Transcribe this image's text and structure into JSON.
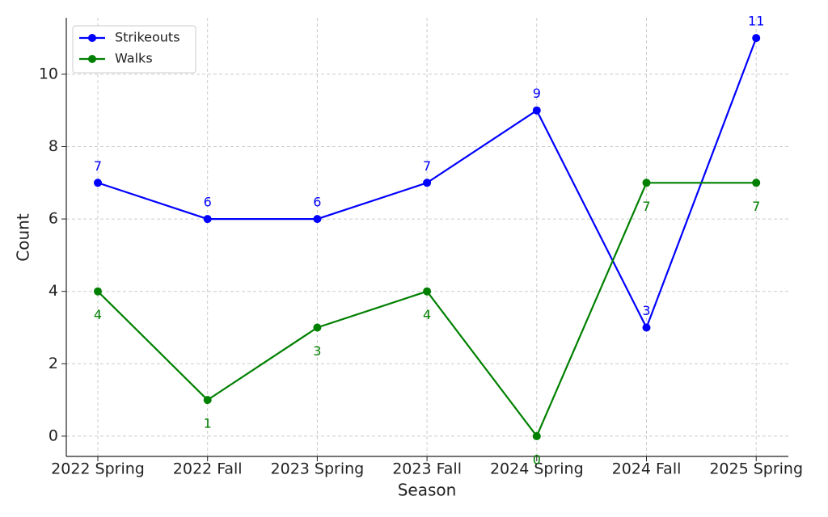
{
  "chart_data": {
    "type": "line",
    "x_label": "Season",
    "y_label": "Count",
    "categories": [
      "2022 Spring",
      "2022 Fall",
      "2023 Spring",
      "2023 Fall",
      "2024 Spring",
      "2024 Fall",
      "2025 Spring"
    ],
    "series": [
      {
        "name": "Strikeouts",
        "color": "#0000ff",
        "values": [
          7,
          6,
          6,
          7,
          9,
          3,
          11
        ],
        "label_position": "above"
      },
      {
        "name": "Walks",
        "color": "#008000",
        "values": [
          4,
          1,
          3,
          4,
          0,
          7,
          7
        ],
        "label_position": "below"
      }
    ],
    "ylim": [
      -0.56,
      11.56
    ],
    "yticks": [
      0,
      2,
      4,
      6,
      8,
      10
    ],
    "grid": true,
    "legend": "upper-left"
  }
}
